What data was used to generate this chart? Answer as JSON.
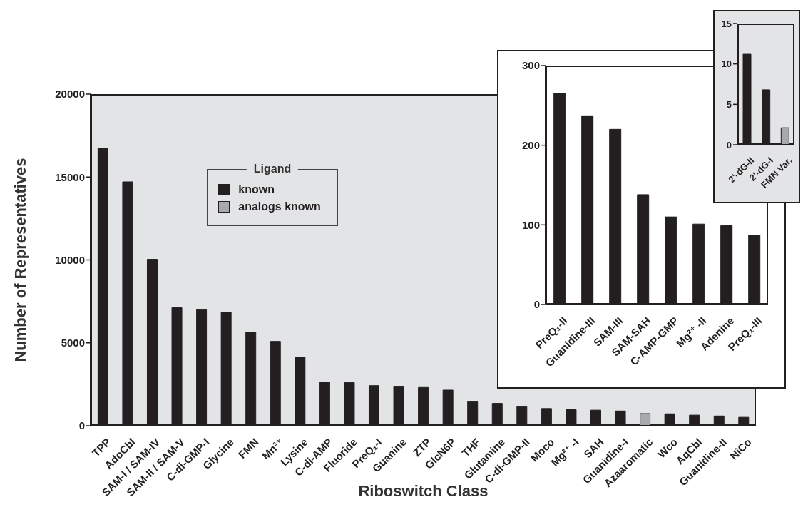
{
  "chart_data": [
    {
      "type": "bar",
      "xlabel": "Riboswitch Class",
      "ylabel": "Number of Representatives",
      "categories": [
        "TPP",
        "AdoCbl",
        "SAM-I / SAM-IV",
        "SAM-II / SAM-V",
        "C-di-GMP-I",
        "Glycine",
        "FMN",
        "Mn²⁺",
        "Lysine",
        "C-di-AMP",
        "Fluoride",
        "PreQ₁-I",
        "Guanine",
        "ZTP",
        "GlcN6P",
        "THF",
        "Glutamine",
        "C-di-GMP-II",
        "Moco",
        "Mg²⁺ -I",
        "SAH",
        "Guanidine-I",
        "Azaaromatic",
        "Wco",
        "AqCbl",
        "Guanidine-II",
        "NiCo"
      ],
      "stacked": true,
      "series": [
        {
          "name": "known",
          "color": "#231f20",
          "values": [
            16750,
            14710,
            10040,
            7120,
            7000,
            6840,
            5650,
            5090,
            4130,
            2640,
            2610,
            2420,
            2360,
            2310,
            2150,
            1450,
            1350,
            1150,
            1040,
            970,
            940,
            890,
            null,
            720,
            640,
            590,
            510
          ]
        },
        {
          "name": "analogs known",
          "color": "#a7a9ac",
          "values": [
            null,
            null,
            null,
            null,
            null,
            null,
            null,
            null,
            null,
            null,
            null,
            null,
            null,
            null,
            null,
            null,
            null,
            null,
            null,
            null,
            null,
            null,
            730,
            null,
            null,
            null,
            null
          ]
        }
      ],
      "ylim": [
        0,
        20000
      ],
      "yticks": [
        0,
        5000,
        10000,
        15000,
        20000
      ],
      "legend": "top left",
      "legend_title": "Ligand"
    },
    {
      "type": "bar",
      "categories": [
        "PreQ₁-II",
        "Guanidine-III",
        "SAM-III",
        "SAM-SAH",
        "C-AMP-GMP",
        "Mg²⁺ -II",
        "Adenine",
        "PreQ₁-III"
      ],
      "values": [
        265,
        237,
        220,
        138,
        110,
        101,
        99,
        87
      ],
      "colors": [
        "#231f20",
        "#231f20",
        "#231f20",
        "#231f20",
        "#231f20",
        "#231f20",
        "#231f20",
        "#231f20"
      ],
      "ylim": [
        0,
        300
      ],
      "yticks": [
        0,
        100,
        200,
        300
      ]
    },
    {
      "type": "bar",
      "categories": [
        "2'-dG-II",
        "2'-dG-I",
        "FMN Var."
      ],
      "values": [
        11.2,
        6.8,
        2.1
      ],
      "colors": [
        "#231f20",
        "#231f20",
        "#a7a9ac"
      ],
      "ylim": [
        0,
        15
      ],
      "yticks": [
        0,
        5,
        10,
        15
      ]
    }
  ]
}
